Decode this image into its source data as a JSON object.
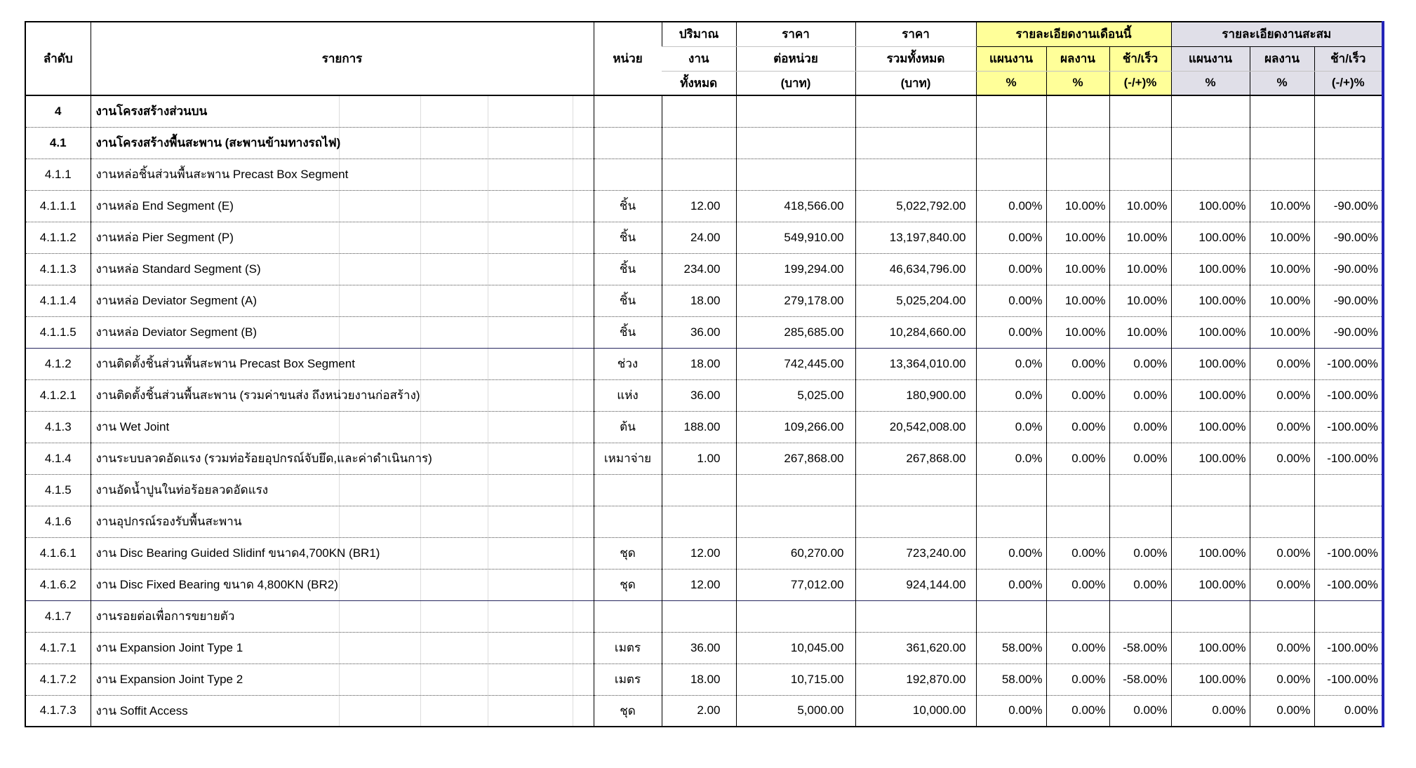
{
  "table": {
    "colors": {
      "month_header_bg": "#FFFF99",
      "cumulative_header_bg": "#E0DFE8",
      "right_border_accent": "#2323B8"
    },
    "header": {
      "no": "ลำดับ",
      "item": "รายการ",
      "unit": "หน่วย",
      "quantity_l1": "ปริมาณ",
      "quantity_l2": "งาน",
      "quantity_l3": "ทั้งหมด",
      "unit_price_l1": "ราคา",
      "unit_price_l2": "ต่อหน่วย",
      "unit_price_l3": "(บาท)",
      "total_price_l1": "ราคา",
      "total_price_l2": "รวมทั้งหมด",
      "total_price_l3": "(บาท)",
      "month_group": "รายละเอียดงานเดือนนี้",
      "cumulative_group": "รายละเอียดงานสะสม",
      "plan": "แผนงาน",
      "actual": "ผลงาน",
      "diff": "ช้า/เร็ว",
      "percent": "%",
      "diff_percent": "(-/+)%"
    },
    "rows": [
      {
        "no": "4",
        "item": "งานโครงสร้างส่วนบน",
        "unit": "",
        "qty": "",
        "unit_price": "",
        "total": "",
        "m_plan": "",
        "m_actual": "",
        "m_diff": "",
        "c_plan": "",
        "c_actual": "",
        "c_diff": "",
        "bold": true
      },
      {
        "no": "4.1",
        "item": "งานโครงสร้างพื้นสะพาน (สะพานข้ามทางรถไฟ)",
        "unit": "",
        "qty": "",
        "unit_price": "",
        "total": "",
        "m_plan": "",
        "m_actual": "",
        "m_diff": "",
        "c_plan": "",
        "c_actual": "",
        "c_diff": "",
        "bold": true
      },
      {
        "no": "4.1.1",
        "item": "งานหล่อชิ้นส่วนพื้นสะพาน Precast Box Segment",
        "unit": "",
        "qty": "",
        "unit_price": "",
        "total": "",
        "m_plan": "",
        "m_actual": "",
        "m_diff": "",
        "c_plan": "",
        "c_actual": "",
        "c_diff": ""
      },
      {
        "no": "4.1.1.1",
        "item": "งานหล่อ End Segment (E)",
        "unit": "ชิ้น",
        "qty": "12.00",
        "unit_price": "418,566.00",
        "total": "5,022,792.00",
        "m_plan": "0.00%",
        "m_actual": "10.00%",
        "m_diff": "10.00%",
        "c_plan": "100.00%",
        "c_actual": "10.00%",
        "c_diff": "-90.00%"
      },
      {
        "no": "4.1.1.2",
        "item": "งานหล่อ Pier Segment (P)",
        "unit": "ชิ้น",
        "qty": "24.00",
        "unit_price": "549,910.00",
        "total": "13,197,840.00",
        "m_plan": "0.00%",
        "m_actual": "10.00%",
        "m_diff": "10.00%",
        "c_plan": "100.00%",
        "c_actual": "10.00%",
        "c_diff": "-90.00%"
      },
      {
        "no": "4.1.1.3",
        "item": "งานหล่อ Standard Segment (S)",
        "unit": "ชิ้น",
        "qty": "234.00",
        "unit_price": "199,294.00",
        "total": "46,634,796.00",
        "m_plan": "0.00%",
        "m_actual": "10.00%",
        "m_diff": "10.00%",
        "c_plan": "100.00%",
        "c_actual": "10.00%",
        "c_diff": "-90.00%"
      },
      {
        "no": "4.1.1.4",
        "item": "งานหล่อ Deviator Segment (A)",
        "unit": "ชิ้น",
        "qty": "18.00",
        "unit_price": "279,178.00",
        "total": "5,025,204.00",
        "m_plan": "0.00%",
        "m_actual": "10.00%",
        "m_diff": "10.00%",
        "c_plan": "100.00%",
        "c_actual": "10.00%",
        "c_diff": "-90.00%"
      },
      {
        "no": "4.1.1.5",
        "item": "งานหล่อ Deviator Segment (B)",
        "unit": "ชิ้น",
        "qty": "36.00",
        "unit_price": "285,685.00",
        "total": "10,284,660.00",
        "m_plan": "0.00%",
        "m_actual": "10.00%",
        "m_diff": "10.00%",
        "c_plan": "100.00%",
        "c_actual": "10.00%",
        "c_diff": "-90.00%"
      },
      {
        "no": "4.1.2",
        "item": "งานติดตั้งชิ้นส่วนพื้นสะพาน Precast Box Segment",
        "unit": "ช่วง",
        "qty": "18.00",
        "unit_price": "742,445.00",
        "total": "13,364,010.00",
        "m_plan": "0.0%",
        "m_actual": "0.00%",
        "m_diff": "0.00%",
        "c_plan": "100.00%",
        "c_actual": "0.00%",
        "c_diff": "-100.00%",
        "sep": "strong"
      },
      {
        "no": "4.1.2.1",
        "item": "งานติดตั้งชิ้นส่วนพื้นสะพาน (รวมค่าขนส่ง ถึงหน่วยงานก่อสร้าง)",
        "unit": "แห่ง",
        "qty": "36.00",
        "unit_price": "5,025.00",
        "total": "180,900.00",
        "m_plan": "0.0%",
        "m_actual": "0.00%",
        "m_diff": "0.00%",
        "c_plan": "100.00%",
        "c_actual": "0.00%",
        "c_diff": "-100.00%"
      },
      {
        "no": "4.1.3",
        "item": "งาน Wet Joint",
        "unit": "ต้น",
        "qty": "188.00",
        "unit_price": "109,266.00",
        "total": "20,542,008.00",
        "m_plan": "0.0%",
        "m_actual": "0.00%",
        "m_diff": "0.00%",
        "c_plan": "100.00%",
        "c_actual": "0.00%",
        "c_diff": "-100.00%"
      },
      {
        "no": "4.1.4",
        "item": "งานระบบลวดอัดแรง (รวมท่อร้อยอุปกรณ์จับยึด,และค่าดำเนินการ)",
        "unit": "เหมาจ่าย",
        "qty": "1.00",
        "unit_price": "267,868.00",
        "total": "267,868.00",
        "m_plan": "0.0%",
        "m_actual": "0.00%",
        "m_diff": "0.00%",
        "c_plan": "100.00%",
        "c_actual": "0.00%",
        "c_diff": "-100.00%"
      },
      {
        "no": "4.1.5",
        "item": "งานอัดน้ำปูนในท่อร้อยลวดอัดแรง",
        "unit": "",
        "qty": "",
        "unit_price": "",
        "total": "",
        "m_plan": "",
        "m_actual": "",
        "m_diff": "",
        "c_plan": "",
        "c_actual": "",
        "c_diff": ""
      },
      {
        "no": "4.1.6",
        "item": "งานอุปกรณ์รองรับพื้นสะพาน",
        "unit": "",
        "qty": "",
        "unit_price": "",
        "total": "",
        "m_plan": "",
        "m_actual": "",
        "m_diff": "",
        "c_plan": "",
        "c_actual": "",
        "c_diff": ""
      },
      {
        "no": "4.1.6.1",
        "item": "งาน Disc Bearing Guided Slidinf ขนาด4,700KN (BR1)",
        "unit": "ชุด",
        "qty": "12.00",
        "unit_price": "60,270.00",
        "total": "723,240.00",
        "m_plan": "0.00%",
        "m_actual": "0.00%",
        "m_diff": "0.00%",
        "c_plan": "100.00%",
        "c_actual": "0.00%",
        "c_diff": "-100.00%"
      },
      {
        "no": "4.1.6.2",
        "item": "งาน Disc Fixed Bearing ขนาด 4,800KN (BR2)",
        "unit": "ชุด",
        "qty": "12.00",
        "unit_price": "77,012.00",
        "total": "924,144.00",
        "m_plan": "0.00%",
        "m_actual": "0.00%",
        "m_diff": "0.00%",
        "c_plan": "100.00%",
        "c_actual": "0.00%",
        "c_diff": "-100.00%"
      },
      {
        "no": "4.1.7",
        "item": "งานรอยต่อเพื่อการขยายตัว",
        "unit": "",
        "qty": "",
        "unit_price": "",
        "total": "",
        "m_plan": "",
        "m_actual": "",
        "m_diff": "",
        "c_plan": "",
        "c_actual": "",
        "c_diff": "",
        "sep": "strong"
      },
      {
        "no": "4.1.7.1",
        "item": "งาน Expansion Joint Type 1",
        "unit": "เมตร",
        "qty": "36.00",
        "unit_price": "10,045.00",
        "total": "361,620.00",
        "m_plan": "58.00%",
        "m_actual": "0.00%",
        "m_diff": "-58.00%",
        "c_plan": "100.00%",
        "c_actual": "0.00%",
        "c_diff": "-100.00%"
      },
      {
        "no": "4.1.7.2",
        "item": "งาน Expansion Joint Type 2",
        "unit": "เมตร",
        "qty": "18.00",
        "unit_price": "10,715.00",
        "total": "192,870.00",
        "m_plan": "58.00%",
        "m_actual": "0.00%",
        "m_diff": "-58.00%",
        "c_plan": "100.00%",
        "c_actual": "0.00%",
        "c_diff": "-100.00%"
      },
      {
        "no": "4.1.7.3",
        "item": "งาน Soffit Access",
        "unit": "ชุด",
        "qty": "2.00",
        "unit_price": "5,000.00",
        "total": "10,000.00",
        "m_plan": "0.00%",
        "m_actual": "0.00%",
        "m_diff": "0.00%",
        "c_plan": "0.00%",
        "c_actual": "0.00%",
        "c_diff": "0.00%"
      }
    ]
  }
}
